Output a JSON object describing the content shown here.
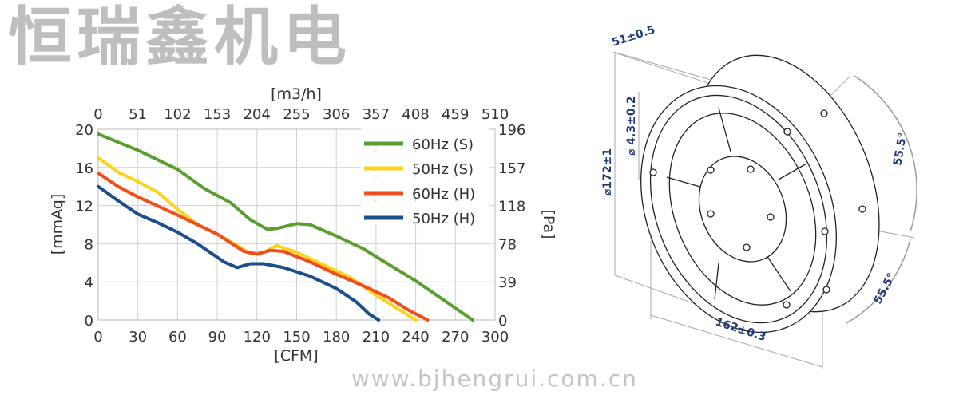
{
  "watermark": {
    "brand": "恒瑞鑫机电",
    "url": "www.bjhengrui.com.cn"
  },
  "chart_data": {
    "type": "line",
    "xlabel": "[CFM]",
    "ylabel": "[mmAq]",
    "x2label": "[m3/h]",
    "y2label": "[Pa]",
    "xlim": [
      0,
      300
    ],
    "ylim": [
      0,
      20
    ],
    "x_ticks": [
      "0",
      "30",
      "60",
      "90",
      "120",
      "150",
      "180",
      "210",
      "240",
      "270",
      "300"
    ],
    "y_ticks": [
      "0",
      "4",
      "8",
      "12",
      "16",
      "20"
    ],
    "x2_ticks": [
      "0",
      "51",
      "102",
      "153",
      "204",
      "255",
      "306",
      "357",
      "408",
      "459",
      "510"
    ],
    "y2_ticks": [
      "0",
      "39",
      "78",
      "118",
      "157",
      "196"
    ],
    "grid": true,
    "legend_position": "top-right",
    "series": [
      {
        "name": "60Hz (S)",
        "color": "#5a9e2f",
        "points": [
          [
            0,
            19.5
          ],
          [
            30,
            17.8
          ],
          [
            60,
            15.8
          ],
          [
            80,
            13.8
          ],
          [
            100,
            12.3
          ],
          [
            115,
            10.5
          ],
          [
            128,
            9.5
          ],
          [
            135,
            9.6
          ],
          [
            150,
            10.1
          ],
          [
            160,
            10.0
          ],
          [
            180,
            8.8
          ],
          [
            200,
            7.5
          ],
          [
            220,
            5.8
          ],
          [
            240,
            4.1
          ],
          [
            260,
            2.2
          ],
          [
            283,
            0
          ]
        ]
      },
      {
        "name": "50Hz (S)",
        "color": "#ffd21a",
        "points": [
          [
            0,
            17
          ],
          [
            15,
            15.5
          ],
          [
            30,
            14.5
          ],
          [
            45,
            13.4
          ],
          [
            60,
            11.6
          ],
          [
            75,
            10
          ],
          [
            90,
            9
          ],
          [
            105,
            7.8
          ],
          [
            115,
            7.0
          ],
          [
            125,
            7.1
          ],
          [
            135,
            7.8
          ],
          [
            150,
            7.1
          ],
          [
            170,
            5.8
          ],
          [
            190,
            4.5
          ],
          [
            210,
            2.6
          ],
          [
            225,
            1.3
          ],
          [
            240,
            0
          ]
        ]
      },
      {
        "name": "60Hz (H)",
        "color": "#f04e1c",
        "points": [
          [
            0,
            15.4
          ],
          [
            15,
            14
          ],
          [
            30,
            12.9
          ],
          [
            60,
            11
          ],
          [
            90,
            9
          ],
          [
            110,
            7.2
          ],
          [
            120,
            6.9
          ],
          [
            130,
            7.3
          ],
          [
            140,
            7.2
          ],
          [
            160,
            6.1
          ],
          [
            180,
            4.8
          ],
          [
            200,
            3.6
          ],
          [
            220,
            2.3
          ],
          [
            235,
            1
          ],
          [
            249,
            0
          ]
        ]
      },
      {
        "name": "50Hz (H)",
        "color": "#1a4f8c",
        "points": [
          [
            0,
            14
          ],
          [
            15,
            12.5
          ],
          [
            30,
            11.1
          ],
          [
            45,
            10.2
          ],
          [
            60,
            9.2
          ],
          [
            75,
            8
          ],
          [
            95,
            6.1
          ],
          [
            105,
            5.5
          ],
          [
            115,
            5.9
          ],
          [
            125,
            5.9
          ],
          [
            140,
            5.5
          ],
          [
            160,
            4.6
          ],
          [
            180,
            3.3
          ],
          [
            195,
            1.9
          ],
          [
            205,
            0.6
          ],
          [
            212,
            0
          ]
        ]
      }
    ]
  },
  "drawing": {
    "depth": "51±0.5",
    "diameter": "⌀172±1",
    "hole": "⌀ 4.3±0.2",
    "width": "162±0.3",
    "angle1": "55.5°",
    "angle2": "55.5°",
    "dim_color": "#1f3a7a"
  }
}
